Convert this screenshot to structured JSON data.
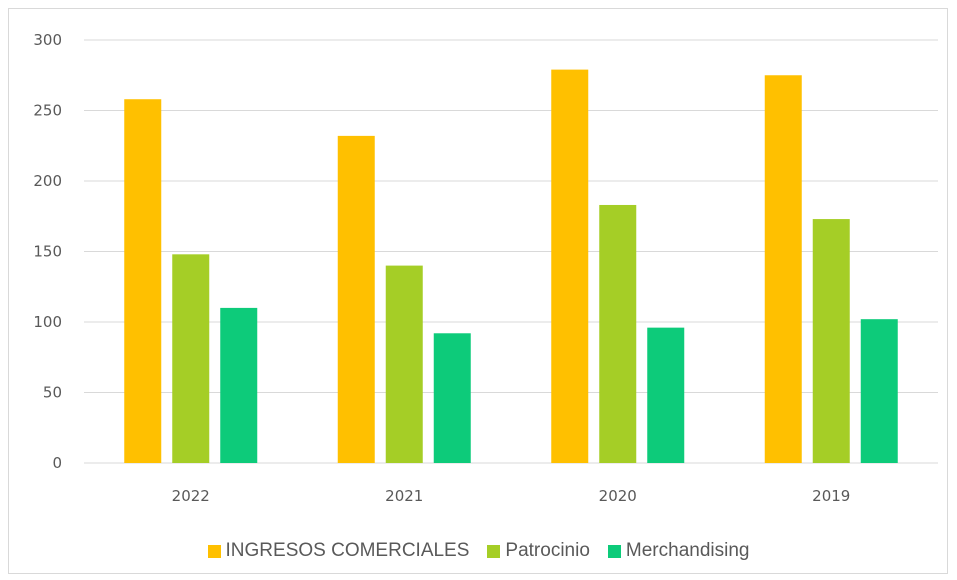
{
  "chart_data": {
    "type": "bar",
    "title": "",
    "xlabel": "",
    "ylabel": "",
    "categories": [
      "2022",
      "2021",
      "2020",
      "2019"
    ],
    "series": [
      {
        "name": "INGRESOS COMERCIALES",
        "color": "#FFC000",
        "values": [
          258,
          232,
          279,
          275
        ]
      },
      {
        "name": "Patrocinio",
        "color": "#A5CE26",
        "values": [
          148,
          140,
          183,
          173
        ]
      },
      {
        "name": "Merchandising",
        "color": "#0DCB7A",
        "values": [
          110,
          92,
          96,
          102
        ]
      }
    ],
    "ylim": [
      0,
      300
    ],
    "yticks": [
      "0",
      "50",
      "100",
      "150",
      "200",
      "250",
      "300"
    ],
    "grid": true,
    "legend_position": "bottom"
  }
}
